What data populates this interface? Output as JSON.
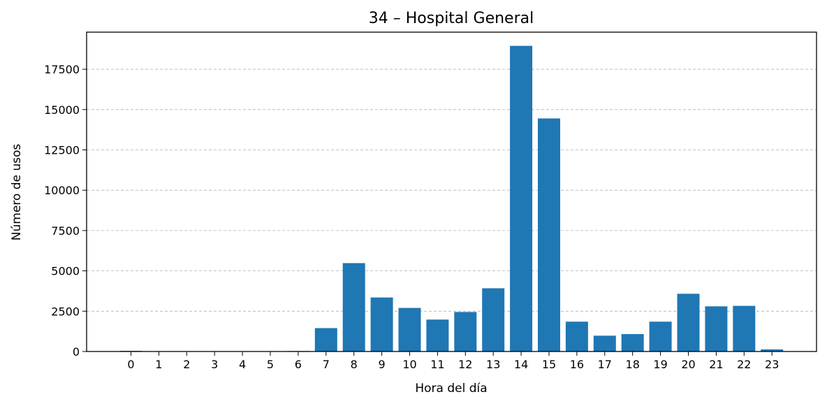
{
  "chart_data": {
    "type": "bar",
    "title": "34 – Hospital General",
    "xlabel": "Hora del día",
    "ylabel": "Número de usos",
    "categories": [
      "0",
      "1",
      "2",
      "3",
      "4",
      "5",
      "6",
      "7",
      "8",
      "9",
      "10",
      "11",
      "12",
      "13",
      "14",
      "15",
      "16",
      "17",
      "18",
      "19",
      "20",
      "21",
      "22",
      "23"
    ],
    "values": [
      40,
      15,
      10,
      8,
      8,
      10,
      30,
      1450,
      5480,
      3350,
      2700,
      1980,
      2450,
      3920,
      18950,
      14450,
      1850,
      980,
      1080,
      1850,
      3580,
      2800,
      2830,
      130
    ],
    "yticks": [
      "0",
      "2500",
      "5000",
      "7500",
      "10000",
      "12500",
      "15000",
      "17500"
    ],
    "ylim": [
      0,
      19800
    ],
    "grid": "y, dashed",
    "bar_color": "#1f77b4"
  }
}
